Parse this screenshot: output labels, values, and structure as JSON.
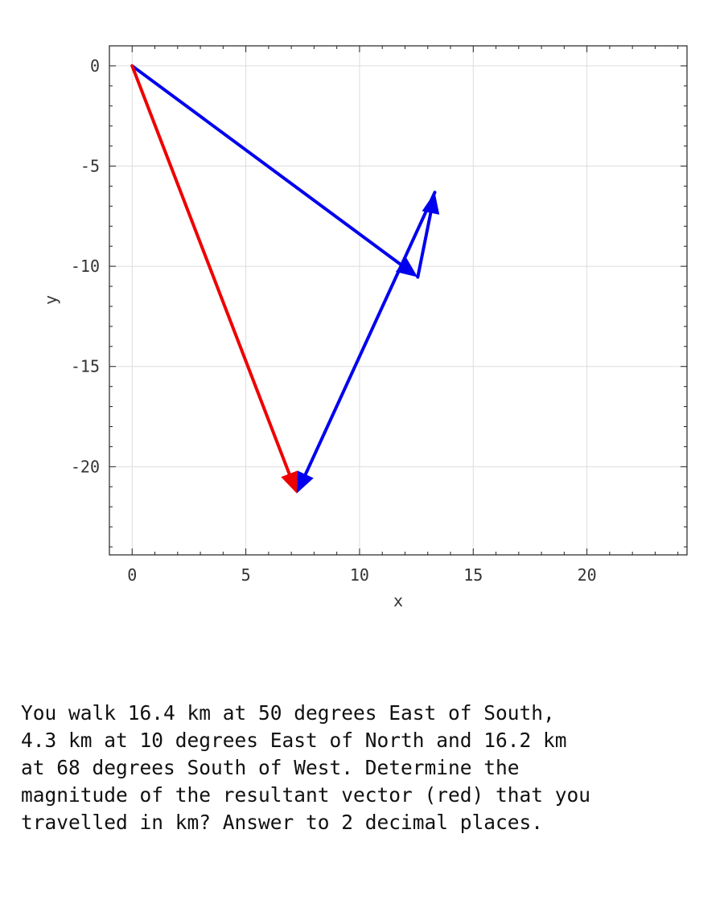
{
  "chart_data": {
    "type": "vector",
    "xlabel": "x",
    "ylabel": "y",
    "xlim": [
      -1,
      24.4
    ],
    "ylim": [
      -24.4,
      1
    ],
    "x_ticks": [
      "0",
      "5",
      "10",
      "15",
      "20"
    ],
    "x_tick_values": [
      0,
      5,
      10,
      15,
      20
    ],
    "y_ticks": [
      "0",
      "-5",
      "-10",
      "-15",
      "-20"
    ],
    "y_tick_values": [
      0,
      -5,
      -10,
      -15,
      -20
    ],
    "grid": true,
    "vectors": [
      {
        "from": [
          0,
          0
        ],
        "to": [
          12.56,
          -10.54
        ],
        "color": "#0000ee",
        "role": "component"
      },
      {
        "from": [
          12.56,
          -10.54
        ],
        "to": [
          13.31,
          -6.31
        ],
        "color": "#0000ee",
        "role": "component"
      },
      {
        "from": [
          13.31,
          -6.31
        ],
        "to": [
          7.24,
          -21.33
        ],
        "color": "#0000ee",
        "role": "component"
      },
      {
        "from": [
          0,
          0
        ],
        "to": [
          7.24,
          -21.33
        ],
        "color": "#ee0000",
        "role": "resultant"
      }
    ]
  },
  "question": "You walk 16.4 km at 50 degrees East of South,\n4.3 km at 10 degrees East of North and 16.2 km\nat 68 degrees South of West.  Determine the\nmagnitude of the resultant vector (red) that you\ntravelled in km? Answer to 2 decimal places."
}
